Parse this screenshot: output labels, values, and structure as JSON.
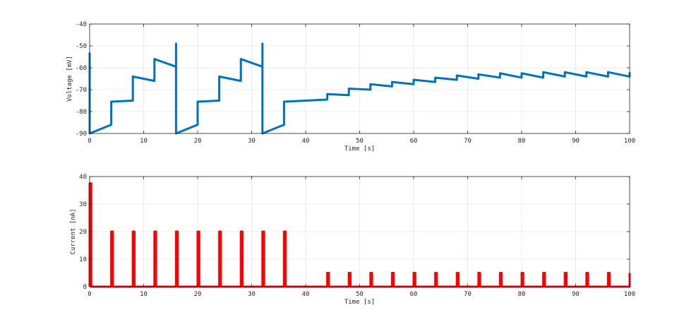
{
  "chart_data": [
    {
      "type": "line",
      "xlabel": "Time [s]",
      "ylabel": "Voltage [mV]",
      "xlim": [
        0,
        100
      ],
      "ylim": [
        -90,
        -40
      ],
      "xticks": [
        0,
        10,
        20,
        30,
        40,
        50,
        60,
        70,
        80,
        90,
        100
      ],
      "yticks": [
        -90,
        -80,
        -70,
        -60,
        -50,
        -40
      ],
      "grid": true,
      "color": "#0072BD",
      "series": [
        {
          "x": [
            0,
            0,
            4,
            4,
            8,
            8,
            12,
            12,
            16,
            16,
            16,
            16,
            20,
            20,
            24,
            24,
            28,
            28,
            32,
            32,
            32,
            32,
            36,
            36,
            44,
            44,
            48,
            48,
            52,
            52,
            56,
            56,
            60,
            60,
            64,
            64,
            68,
            68,
            72,
            72,
            76,
            76,
            80,
            80,
            84,
            84,
            88,
            88,
            92,
            92,
            96,
            96,
            100,
            100
          ],
          "values": [
            -53,
            -90,
            -86,
            -75.5,
            -75,
            -64,
            -66,
            -56,
            -59.5,
            -49,
            -49,
            -90,
            -86,
            -75.5,
            -75,
            -64,
            -66,
            -56,
            -59.5,
            -49,
            -49,
            -90,
            -86,
            -75.5,
            -74.5,
            -72,
            -72.5,
            -69.5,
            -70,
            -67.5,
            -68.5,
            -66.5,
            -67.5,
            -65.5,
            -66.5,
            -64.5,
            -65.5,
            -63.5,
            -65,
            -63,
            -64.5,
            -62.5,
            -64.5,
            -62.5,
            -64.5,
            -62,
            -64,
            -62,
            -64,
            -62,
            -64,
            -62,
            -64,
            -62
          ]
        }
      ]
    },
    {
      "type": "line",
      "xlabel": "Time [s]",
      "ylabel": "Current [nA]",
      "xlim": [
        0,
        100
      ],
      "ylim": [
        0,
        40
      ],
      "xticks": [
        0,
        10,
        20,
        30,
        40,
        50,
        60,
        70,
        80,
        90,
        100
      ],
      "yticks": [
        0,
        10,
        20,
        30,
        40
      ],
      "grid": true,
      "color": "#FF0000",
      "series": [
        {
          "x": [
            0,
            0,
            0.3,
            0.3,
            4,
            4,
            4.3,
            4.3,
            8,
            8,
            8.3,
            8.3,
            12,
            12,
            12.3,
            12.3,
            16,
            16,
            16.3,
            16.3,
            20,
            20,
            20.3,
            20.3,
            24,
            24,
            24.3,
            24.3,
            28,
            28,
            28.3,
            28.3,
            32,
            32,
            32.3,
            32.3,
            36,
            36,
            36.3,
            36.3,
            44,
            44,
            44.3,
            44.3,
            48,
            48,
            48.3,
            48.3,
            52,
            52,
            52.3,
            52.3,
            56,
            56,
            56.3,
            56.3,
            60,
            60,
            60.3,
            60.3,
            64,
            64,
            64.3,
            64.3,
            68,
            68,
            68.3,
            68.3,
            72,
            72,
            72.3,
            72.3,
            76,
            76,
            76.3,
            76.3,
            80,
            80,
            80.3,
            80.3,
            84,
            84,
            84.3,
            84.3,
            88,
            88,
            88.3,
            88.3,
            92,
            92,
            92.3,
            92.3,
            96,
            96,
            96.3,
            96.3,
            100,
            100
          ],
          "values": [
            0,
            37.5,
            37.5,
            0,
            0,
            20,
            20,
            0,
            0,
            20,
            20,
            0,
            0,
            20,
            20,
            0,
            0,
            20,
            20,
            0,
            0,
            20,
            20,
            0,
            0,
            20,
            20,
            0,
            0,
            20,
            20,
            0,
            0,
            20,
            20,
            0,
            0,
            20,
            20,
            0,
            0,
            5,
            5,
            0,
            0,
            5,
            5,
            0,
            0,
            5,
            5,
            0,
            0,
            5,
            5,
            0,
            0,
            5,
            5,
            0,
            0,
            5,
            5,
            0,
            0,
            5,
            5,
            0,
            0,
            5,
            5,
            0,
            0,
            5,
            5,
            0,
            0,
            5,
            5,
            0,
            0,
            5,
            5,
            0,
            0,
            5,
            5,
            0,
            0,
            5,
            5,
            0,
            0,
            5,
            5,
            0,
            0,
            5
          ]
        }
      ]
    }
  ]
}
